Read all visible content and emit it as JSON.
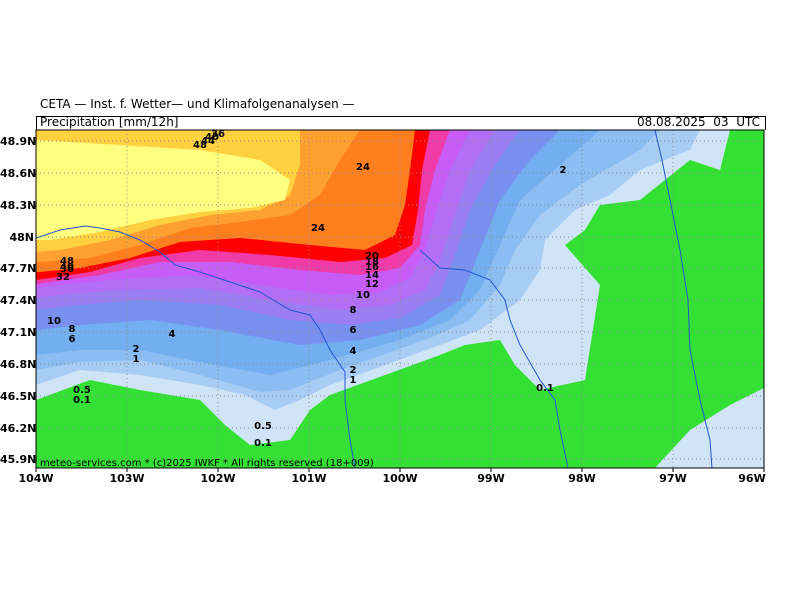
{
  "header": {
    "title": "CETA — Inst. f. Wetter— und Klimafolgenanalysen —",
    "product": "Precipitation [mm/12h]",
    "datetime": "08.08.2025  03  UTC"
  },
  "axes": {
    "lat_labels": [
      "48.9N",
      "48.6N",
      "48.3N",
      "48N",
      "47.7N",
      "47.4N",
      "47.1N",
      "46.8N",
      "46.5N",
      "46.2N",
      "45.9N"
    ],
    "lon_labels": [
      "104W",
      "103W",
      "102W",
      "101W",
      "100W",
      "99W",
      "98W",
      "97W",
      "96W"
    ]
  },
  "footer": "meteo-services.com * (c)2025 IWKF * All rights reserved (18+009)",
  "legend_colors": {
    "0.1": "#d0e4f7",
    "0.5": "#a8cdf5",
    "1": "#8cbdf2",
    "2": "#73aef0",
    "4": "#7890f0",
    "6": "#9a7ef2",
    "8": "#b26ef4",
    "10": "#c85cf6",
    "12": "#e049d8",
    "14": "#ef3aa8",
    "16": "#f63278",
    "18": "#fb1e3c",
    "20": "#ff0000",
    "24": "#ff7f1e",
    "32": "#ffa030",
    "36": "#ffd040",
    "40": "#ffe860",
    "dry": "#33e033"
  },
  "contour_labels": [
    {
      "text": "48"
    },
    {
      "text": "40"
    },
    {
      "text": "36"
    },
    {
      "text": "32"
    },
    {
      "text": "48"
    },
    {
      "text": "44"
    },
    {
      "text": "40"
    },
    {
      "text": "36"
    },
    {
      "text": "24"
    },
    {
      "text": "24"
    },
    {
      "text": "20"
    },
    {
      "text": "18"
    },
    {
      "text": "16"
    },
    {
      "text": "14"
    },
    {
      "text": "12"
    },
    {
      "text": "10"
    },
    {
      "text": "8"
    },
    {
      "text": "6"
    },
    {
      "text": "4"
    },
    {
      "text": "2"
    },
    {
      "text": "1"
    },
    {
      "text": "10"
    },
    {
      "text": "8"
    },
    {
      "text": "6"
    },
    {
      "text": "4"
    },
    {
      "text": "2"
    },
    {
      "text": "1"
    },
    {
      "text": "0.5"
    },
    {
      "text": "0.1"
    },
    {
      "text": "0.5"
    },
    {
      "text": "0.1"
    },
    {
      "text": "0.1"
    },
    {
      "text": "2"
    }
  ]
}
